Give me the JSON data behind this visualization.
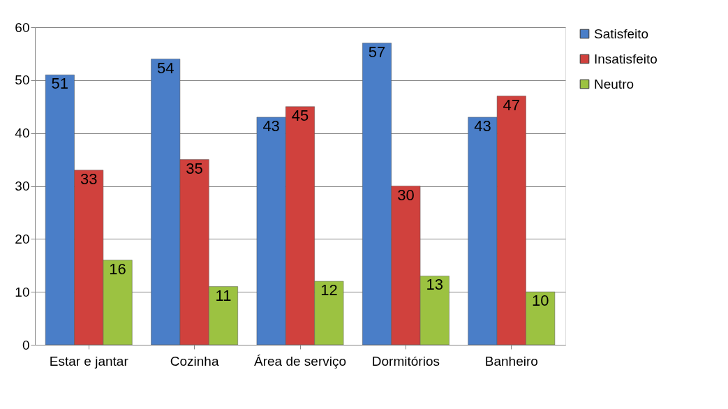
{
  "chart_data": {
    "type": "bar",
    "categories": [
      "Estar e jantar",
      "Cozinha",
      "Área de serviço",
      "Dormitórios",
      "Banheiro"
    ],
    "series": [
      {
        "name": "Satisfeito",
        "color": "#4a7ec8",
        "values": [
          51,
          54,
          43,
          57,
          43
        ]
      },
      {
        "name": "Insatisfeito",
        "color": "#d0413d",
        "values": [
          33,
          35,
          45,
          30,
          47
        ]
      },
      {
        "name": "Neutro",
        "color": "#9cc241",
        "values": [
          16,
          11,
          12,
          13,
          10
        ]
      }
    ],
    "ylim": [
      0,
      60
    ],
    "yticks": [
      0,
      10,
      20,
      30,
      40,
      50,
      60
    ],
    "grid": "y",
    "legend": "right",
    "data_labels": true
  }
}
